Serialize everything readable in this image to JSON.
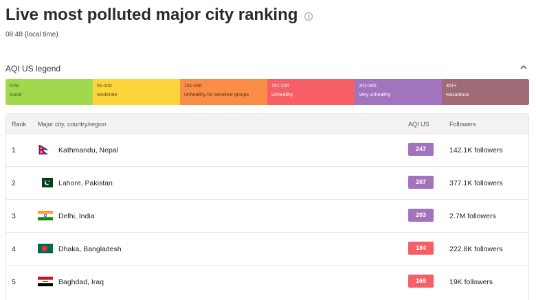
{
  "page": {
    "title": "Live most polluted major city ranking",
    "info_icon": "info-icon",
    "time": "08:48 (local time)"
  },
  "legend": {
    "title": "AQI US legend",
    "toggle_icon": "chevron-up-icon",
    "segments": [
      {
        "range": "0-50",
        "label": "Good",
        "color": "#a0d94e",
        "text_color": "#3f4a2a"
      },
      {
        "range": "51-100",
        "label": "Moderate",
        "color": "#fcd53c",
        "text_color": "#5c4a12"
      },
      {
        "range": "101-150",
        "label": "Unhealthy for sensitive groups",
        "color": "#fb8e47",
        "text_color": "#5a2d10"
      },
      {
        "range": "151-200",
        "label": "Unhealthy",
        "color": "#f75e65",
        "text_color": "#ffffff"
      },
      {
        "range": "201-300",
        "label": "Very unhealthy",
        "color": "#a274be",
        "text_color": "#ffffff"
      },
      {
        "range": "301+",
        "label": "Hazardous",
        "color": "#a06a77",
        "text_color": "#ffffff"
      }
    ]
  },
  "table": {
    "columns": {
      "rank": "Rank",
      "city": "Major city, country/region",
      "aqi": "AQI US",
      "followers": "Followers"
    },
    "rows": [
      {
        "rank": "1",
        "flag": "nepal-flag-icon",
        "city": "Kathmandu, Nepal",
        "aqi": "247",
        "aqi_color": "#a274be",
        "followers": "142.1K followers"
      },
      {
        "rank": "2",
        "flag": "pakistan-flag-icon",
        "city": "Lahore, Pakistan",
        "aqi": "207",
        "aqi_color": "#a274be",
        "followers": "377.1K followers"
      },
      {
        "rank": "3",
        "flag": "india-flag-icon",
        "city": "Delhi, India",
        "aqi": "203",
        "aqi_color": "#a274be",
        "followers": "2.7M followers"
      },
      {
        "rank": "4",
        "flag": "bangladesh-flag-icon",
        "city": "Dhaka, Bangladesh",
        "aqi": "184",
        "aqi_color": "#f75e65",
        "followers": "222.8K followers"
      },
      {
        "rank": "5",
        "flag": "iraq-flag-icon",
        "city": "Baghdad, Iraq",
        "aqi": "169",
        "aqi_color": "#f75e65",
        "followers": "19K followers"
      }
    ]
  }
}
